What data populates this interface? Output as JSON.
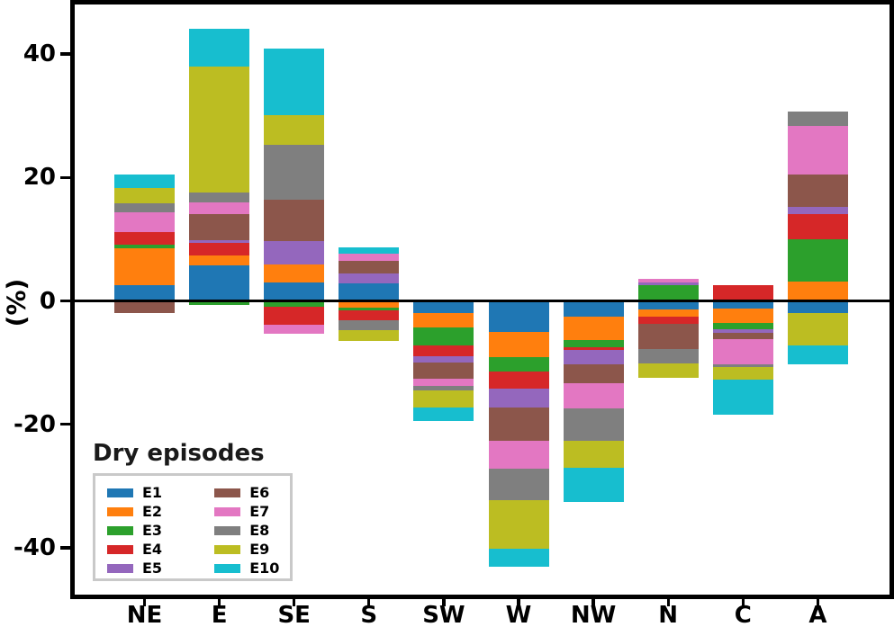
{
  "chart_data": {
    "type": "bar",
    "stacked": true,
    "grid": false,
    "zero_line": true,
    "ylabel": "(%)",
    "ylim": [
      -47.6,
      48
    ],
    "yticks": [
      40,
      20,
      0,
      -20,
      -40
    ],
    "ytick_labels": [
      "40",
      "20",
      "0",
      "-20",
      "-40"
    ],
    "categories": [
      "NE",
      "E",
      "SE",
      "S",
      "SW",
      "W",
      "NW",
      "N",
      "C",
      "A"
    ],
    "legend": {
      "title": "Dry episodes",
      "position": "lower left",
      "columns": 2,
      "border_color": "#c9c9c9"
    },
    "frame_color": "#000000",
    "series": [
      {
        "name": "E1",
        "color": "#1f77b4",
        "values": [
          2.6,
          5.7,
          3.0,
          2.9,
          -1.9,
          -5.0,
          -2.6,
          -1.4,
          -1.2,
          -2.0
        ]
      },
      {
        "name": "E2",
        "color": "#ff7f0e",
        "values": [
          5.9,
          1.7,
          2.9,
          -1.1,
          -2.4,
          -4.1,
          -3.7,
          -1.2,
          -2.3,
          3.2
        ]
      },
      {
        "name": "E3",
        "color": "#2ca02c",
        "values": [
          0.6,
          -0.7,
          -1.0,
          -0.5,
          -2.9,
          -2.3,
          -1.2,
          2.5,
          -1.1,
          6.8
        ]
      },
      {
        "name": "E4",
        "color": "#d62728",
        "values": [
          2.0,
          2.0,
          -2.9,
          -1.5,
          -1.7,
          -2.8,
          -0.4,
          -1.1,
          2.5,
          4.1
        ]
      },
      {
        "name": "E5",
        "color": "#9467bd",
        "values": [
          0,
          0.4,
          3.8,
          1.6,
          -1.1,
          -3.0,
          -2.3,
          0.5,
          -0.5,
          1.1
        ]
      },
      {
        "name": "E6",
        "color": "#8c564b",
        "values": [
          -2.0,
          4.2,
          6.7,
          2.0,
          -2.6,
          -5.5,
          -3.2,
          -4.1,
          -1.1,
          5.2
        ]
      },
      {
        "name": "E7",
        "color": "#e377c2",
        "values": [
          3.2,
          2.0,
          -1.4,
          1.1,
          -1.2,
          -4.4,
          -4.0,
          0.5,
          -4.0,
          8.0
        ]
      },
      {
        "name": "E8",
        "color": "#7f7f7f",
        "values": [
          1.5,
          1.6,
          8.9,
          -1.7,
          -0.7,
          -5.2,
          -5.2,
          -2.3,
          -0.5,
          2.2
        ]
      },
      {
        "name": "E9",
        "color": "#bcbd22",
        "values": [
          2.5,
          20.4,
          4.8,
          -1.7,
          -2.7,
          -7.9,
          -4.4,
          -2.4,
          -2.1,
          -5.2
        ]
      },
      {
        "name": "E10",
        "color": "#17becf",
        "values": [
          2.1,
          6.1,
          10.8,
          1.1,
          -2.2,
          -2.9,
          -5.5,
          0,
          -5.6,
          -3.1
        ]
      }
    ]
  }
}
